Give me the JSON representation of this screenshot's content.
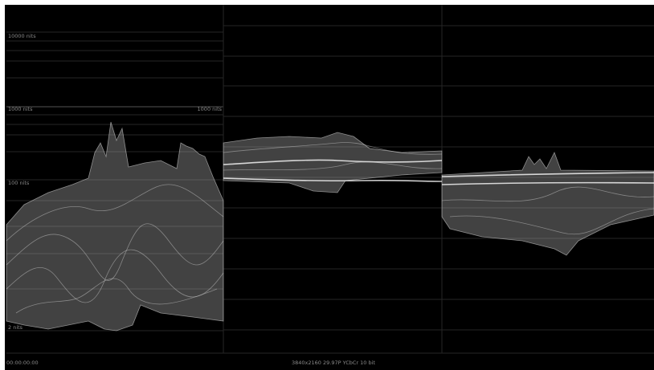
{
  "scale_labels": {
    "nits_10000": "10000 nits",
    "nits_1000_left": "1000 nits",
    "nits_1000_right": "1000 nits",
    "nits_100": "100 nits",
    "nits_2": "2 nits"
  },
  "footer": {
    "timecode": "00:00:00:00",
    "format": "3840x2160 29.97P YCbCr 10 bit"
  }
}
